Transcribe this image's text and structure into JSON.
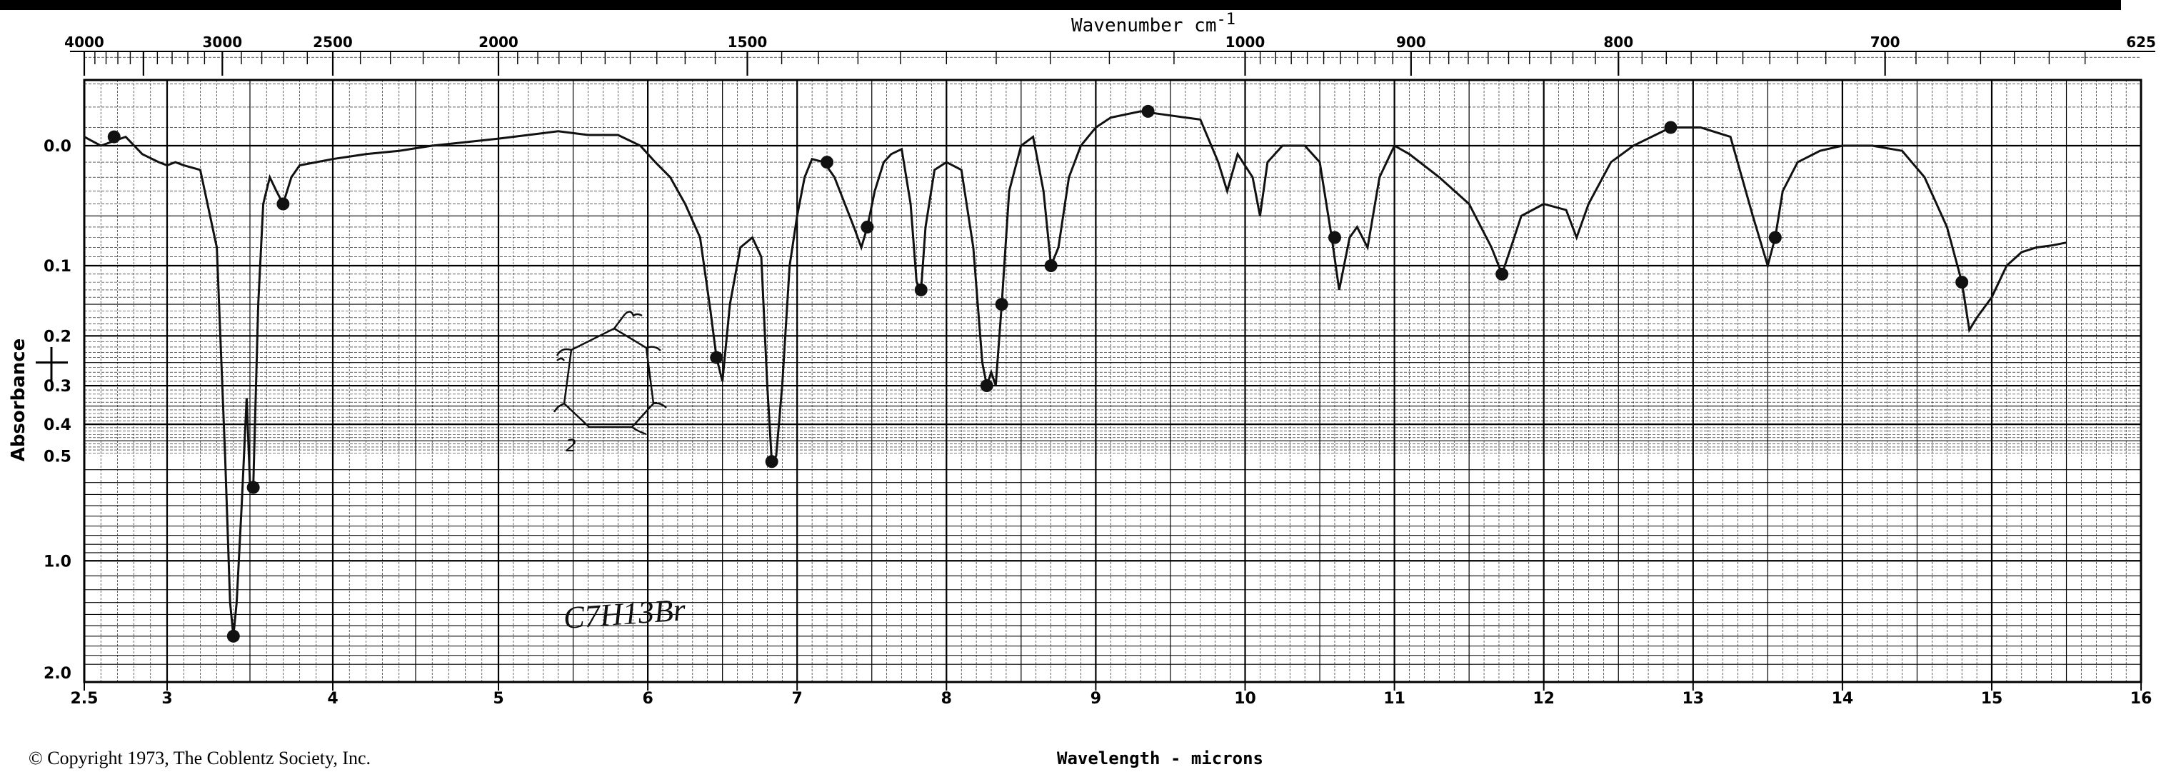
{
  "chart_data": {
    "type": "line",
    "title": "",
    "top_axis": {
      "label": "Wavenumber cm",
      "label_sup": "-1",
      "ticks": [
        "4000",
        "3000",
        "2500",
        "2000",
        "1500",
        "1000",
        "900",
        "800",
        "700",
        "625"
      ],
      "tick_values": [
        4000,
        3000,
        2500,
        2000,
        1500,
        1000,
        900,
        800,
        700,
        625
      ]
    },
    "x_axis": {
      "label": "Wavelength - microns",
      "range": [
        2.5,
        16
      ],
      "ticks": [
        "2.5",
        "3",
        "4",
        "5",
        "6",
        "7",
        "8",
        "9",
        "10",
        "11",
        "12",
        "13",
        "14",
        "15",
        "16"
      ],
      "tick_values": [
        2.5,
        3,
        4,
        5,
        6,
        7,
        8,
        9,
        10,
        11,
        12,
        13,
        14,
        15,
        16
      ]
    },
    "y_axis": {
      "label": "Absorbance",
      "scale": "nonlinear",
      "ticks": [
        "0.0",
        "0.1",
        "0.2",
        "0.3",
        "0.4",
        "0.5",
        "1.0",
        "2.0"
      ],
      "tick_values": [
        0.0,
        0.1,
        0.2,
        0.3,
        0.4,
        0.5,
        1.0,
        2.0
      ]
    },
    "grid": true,
    "annotations": {
      "formula": "C7H13Br",
      "copyright": "© Copyright 1973, The Coblentz Society, Inc."
    },
    "series": [
      {
        "x": [
          2.5,
          2.6,
          2.75,
          2.85,
          2.95,
          3.0,
          3.05,
          3.1,
          3.2,
          3.3,
          3.35,
          3.38,
          3.4,
          3.42,
          3.45,
          3.48,
          3.5,
          3.52,
          3.55,
          3.58,
          3.62,
          3.66,
          3.7,
          3.75,
          3.8,
          3.9,
          4.0,
          4.2,
          4.4,
          4.6,
          4.8,
          5.0,
          5.2,
          5.4,
          5.6,
          5.8,
          5.95,
          6.05,
          6.15,
          6.25,
          6.35,
          6.42,
          6.46,
          6.5,
          6.55,
          6.62,
          6.7,
          6.76,
          6.8,
          6.83,
          6.86,
          6.9,
          6.95,
          7.0,
          7.05,
          7.1,
          7.18,
          7.25,
          7.32,
          7.38,
          7.43,
          7.47,
          7.52,
          7.58,
          7.63,
          7.7,
          7.76,
          7.8,
          7.83,
          7.86,
          7.92,
          8.0,
          8.1,
          8.18,
          8.24,
          8.27,
          8.3,
          8.33,
          8.37,
          8.42,
          8.5,
          8.58,
          8.65,
          8.7,
          8.75,
          8.82,
          8.9,
          9.0,
          9.1,
          9.3,
          9.5,
          9.7,
          9.82,
          9.88,
          9.95,
          10.05,
          10.1,
          10.15,
          10.25,
          10.4,
          10.5,
          10.58,
          10.63,
          10.7,
          10.75,
          10.82,
          10.9,
          11.0,
          11.1,
          11.3,
          11.5,
          11.65,
          11.72,
          11.78,
          11.85,
          12.0,
          12.15,
          12.22,
          12.3,
          12.45,
          12.6,
          12.85,
          13.05,
          13.25,
          13.4,
          13.5,
          13.55,
          13.6,
          13.7,
          13.85,
          14.0,
          14.2,
          14.4,
          14.55,
          14.7,
          14.8,
          14.85,
          14.9,
          15.0,
          15.1,
          15.2,
          15.3,
          15.4,
          15.5
        ],
        "y": [
          -0.005,
          0.0,
          -0.005,
          0.005,
          0.01,
          0.012,
          0.01,
          0.012,
          0.015,
          0.08,
          0.5,
          1.3,
          1.6,
          1.3,
          0.7,
          0.33,
          0.6,
          0.62,
          0.15,
          0.04,
          0.02,
          0.03,
          0.04,
          0.02,
          0.012,
          0.01,
          0.008,
          0.005,
          0.003,
          0.0,
          -0.002,
          -0.004,
          -0.006,
          -0.008,
          -0.006,
          -0.006,
          0.0,
          0.01,
          0.02,
          0.04,
          0.07,
          0.16,
          0.24,
          0.29,
          0.15,
          0.08,
          0.07,
          0.09,
          0.3,
          0.52,
          0.5,
          0.3,
          0.1,
          0.05,
          0.02,
          0.008,
          0.01,
          0.02,
          0.04,
          0.06,
          0.08,
          0.06,
          0.03,
          0.01,
          0.005,
          0.002,
          0.04,
          0.12,
          0.13,
          0.06,
          0.015,
          0.01,
          0.015,
          0.08,
          0.25,
          0.3,
          0.27,
          0.3,
          0.15,
          0.03,
          0.0,
          -0.005,
          0.03,
          0.1,
          0.08,
          0.02,
          0.0,
          -0.01,
          -0.015,
          -0.018,
          -0.016,
          -0.014,
          0.01,
          0.03,
          0.005,
          0.02,
          0.05,
          0.01,
          0.0,
          0.0,
          0.01,
          0.07,
          0.13,
          0.07,
          0.06,
          0.08,
          0.02,
          0.0,
          0.005,
          0.02,
          0.04,
          0.08,
          0.11,
          0.08,
          0.05,
          0.04,
          0.045,
          0.07,
          0.04,
          0.01,
          0.0,
          -0.01,
          -0.01,
          -0.005,
          0.05,
          0.1,
          0.07,
          0.03,
          0.01,
          0.003,
          0.0,
          0.0,
          0.003,
          0.02,
          0.06,
          0.12,
          0.19,
          0.17,
          0.14,
          0.1,
          0.085,
          0.08,
          0.078,
          0.075
        ]
      }
    ]
  }
}
